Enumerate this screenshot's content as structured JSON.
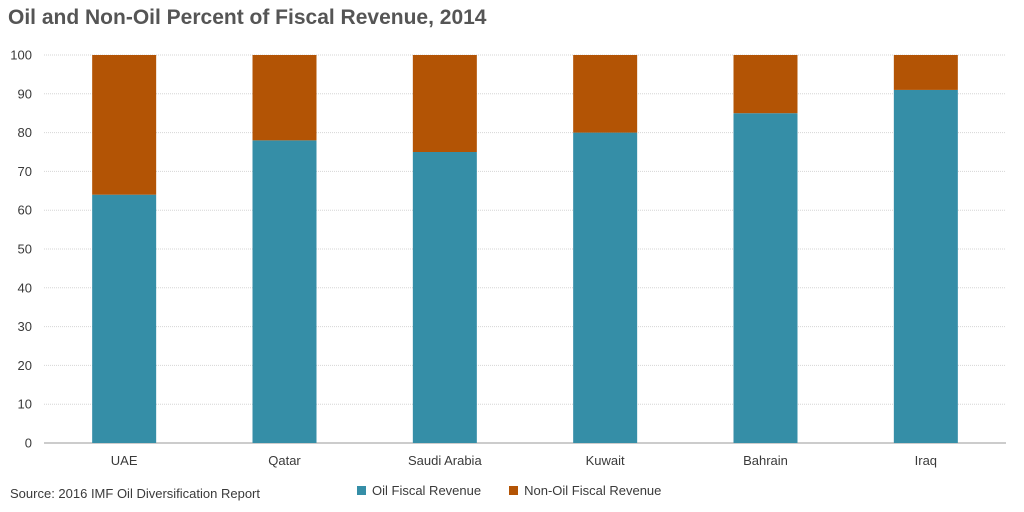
{
  "chart_data": {
    "type": "bar",
    "stacked": true,
    "title": "Oil and Non-Oil Percent of Fiscal Revenue, 2014",
    "categories": [
      "UAE",
      "Qatar",
      "Saudi Arabia",
      "Kuwait",
      "Bahrain",
      "Iraq"
    ],
    "series": [
      {
        "name": "Oil Fiscal Revenue",
        "color": "#358ea7",
        "values": [
          64,
          78,
          75,
          80,
          85,
          91
        ]
      },
      {
        "name": "Non-Oil Fiscal Revenue",
        "color": "#b35405",
        "values": [
          36,
          22,
          25,
          20,
          15,
          9
        ]
      }
    ],
    "ylim": [
      0,
      100
    ],
    "yticks": [
      0,
      10,
      20,
      30,
      40,
      50,
      60,
      70,
      80,
      90,
      100
    ],
    "grid": true,
    "legend_position": "bottom",
    "source": "Source: 2016 IMF Oil Diversification Report"
  }
}
